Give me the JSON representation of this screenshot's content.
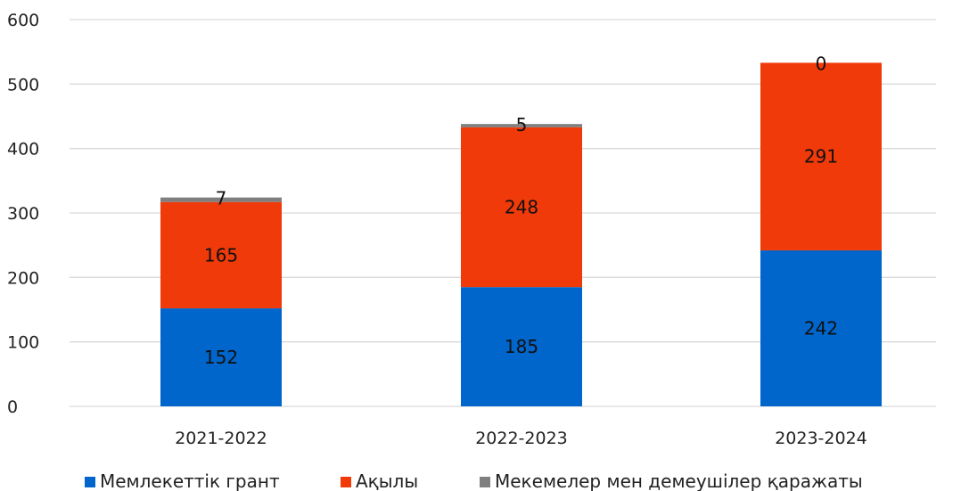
{
  "chart_data": {
    "type": "bar",
    "stacked": true,
    "categories": [
      "2021-2022",
      "2022-2023",
      "2023-2024"
    ],
    "series": [
      {
        "name": "Мемлекеттік грант",
        "values": [
          152,
          185,
          242
        ],
        "color": "#0066CC"
      },
      {
        "name": "Ақылы",
        "values": [
          165,
          248,
          291
        ],
        "color": "#F03A0A"
      },
      {
        "name": "Мекемелер мен демеушілер қаражаты",
        "values": [
          7,
          5,
          0
        ],
        "color": "#7F7F7F"
      }
    ],
    "ylim": [
      0,
      600
    ],
    "yticks": [
      "0",
      "100",
      "200",
      "300",
      "400",
      "500",
      "600"
    ],
    "grid": true,
    "legend": "bottom",
    "title": "",
    "xlabel": "",
    "ylabel": ""
  }
}
